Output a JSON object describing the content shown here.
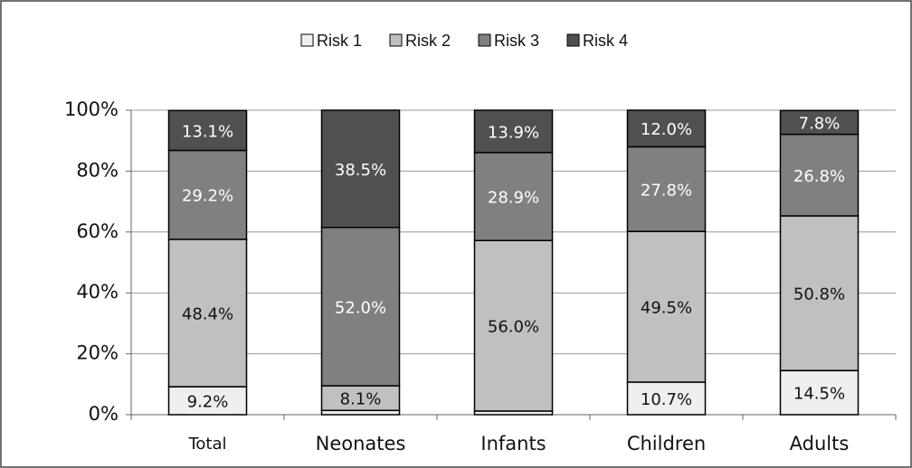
{
  "chart_data": {
    "type": "stacked_bar",
    "categories": [
      "Total",
      "Neonates",
      "Infants",
      "Children",
      "Adults"
    ],
    "series": [
      {
        "name": "Risk 1",
        "color": "#efefef",
        "values": [
          9.2,
          1.4,
          1.2,
          10.7,
          14.5
        ],
        "value_labels": [
          "9.2%",
          null,
          null,
          "10.7%",
          "14.5%"
        ]
      },
      {
        "name": "Risk 2",
        "color": "#c0c0c0",
        "values": [
          48.4,
          8.1,
          56.0,
          49.5,
          50.8
        ],
        "value_labels": [
          "48.4%",
          "8.1%",
          "56.0%",
          "49.5%",
          "50.8%"
        ]
      },
      {
        "name": "Risk 3",
        "color": "#808080",
        "values": [
          29.2,
          52.0,
          28.9,
          27.8,
          26.8
        ],
        "value_labels": [
          "29.2%",
          "52.0%",
          "28.9%",
          "27.8%",
          "26.8%"
        ]
      },
      {
        "name": "Risk 4",
        "color": "#505050",
        "values": [
          13.1,
          38.5,
          13.9,
          12.0,
          7.8
        ],
        "value_labels": [
          "13.1%",
          "38.5%",
          "13.9%",
          "12.0%",
          "7.8%"
        ]
      }
    ],
    "ylim": [
      0,
      100
    ],
    "yticks": [
      {
        "value": 0,
        "label": "0%"
      },
      {
        "value": 20,
        "label": "20%"
      },
      {
        "value": 40,
        "label": "40%"
      },
      {
        "value": 60,
        "label": "60%"
      },
      {
        "value": 80,
        "label": "80%"
      },
      {
        "value": 100,
        "label": "100%"
      }
    ],
    "grid": true,
    "legend": "top"
  }
}
